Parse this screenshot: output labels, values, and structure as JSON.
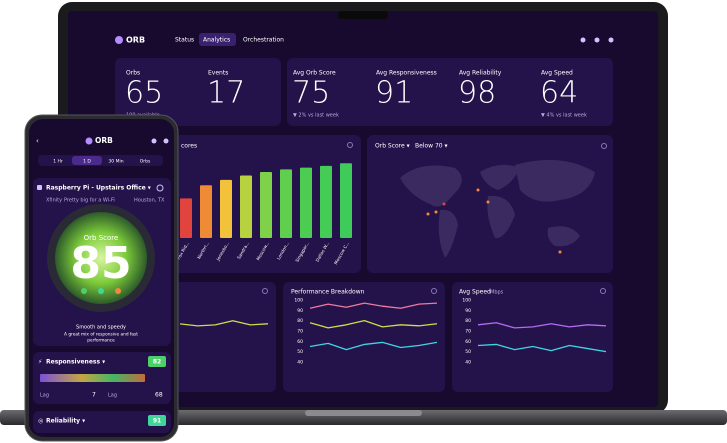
{
  "laptop": {
    "nav": {
      "logo": "ORB",
      "tabs": [
        "Status",
        "Analytics",
        "Orchestration"
      ],
      "active_tab": 1
    },
    "stats": [
      {
        "label": "Orbs",
        "value": "65",
        "note": "100 available",
        "color": "#ffffff"
      },
      {
        "label": "Events",
        "value": "17",
        "color": "#ffffff"
      },
      {
        "label": "Avg Orb Score",
        "value": "75",
        "note": "▼ 2% vs last week",
        "color": "#f2b43c"
      },
      {
        "label": "Avg Responsiveness",
        "value": "91",
        "color": "#4cd16a"
      },
      {
        "label": "Avg Reliability",
        "value": "98",
        "color": "#3fd69a"
      },
      {
        "label": "Avg Speed",
        "value": "64",
        "note": "▼ 4% vs last week",
        "color": "#f28a3c"
      }
    ],
    "score_chart": {
      "type": "bar",
      "title": "cores",
      "categories": [
        "Fox Rid...",
        "Northri...",
        "Jonesbo...",
        "Sandra...",
        "Moscow...",
        "London...",
        "Singapor...",
        "Dallas W...",
        "Moscow C..."
      ],
      "values": [
        45,
        60,
        66,
        71,
        75,
        78,
        80,
        82,
        85
      ],
      "colors": [
        "#e0443c",
        "#ef8a35",
        "#f2c23a",
        "#b8d13e",
        "#7fd14a",
        "#5fcf4d",
        "#4ccd52",
        "#45cc56",
        "#3fcb5a"
      ],
      "ylim": [
        0,
        100
      ]
    },
    "map": {
      "filter_1": "Orb Score ▾",
      "filter_2": "Below 70 ▾"
    },
    "trend_chart": {
      "type": "line",
      "ylim": [
        40,
        100
      ],
      "series": [
        {
          "color": "#c8e04a",
          "values": [
            75,
            73,
            74,
            78,
            74,
            75
          ]
        }
      ]
    },
    "performance_chart": {
      "type": "line",
      "title": "Performance Breakdown",
      "ylim": [
        40,
        100
      ],
      "yticks": [
        100,
        90,
        80,
        70,
        60,
        50,
        40
      ],
      "grid": false,
      "series": [
        {
          "color": "#f07aa0",
          "values": [
            92,
            96,
            93,
            97,
            94,
            92,
            96,
            97
          ]
        },
        {
          "color": "#c8e04a",
          "values": [
            78,
            73,
            76,
            80,
            74,
            76,
            75,
            77
          ]
        },
        {
          "color": "#3fd6e0",
          "values": [
            55,
            58,
            52,
            57,
            59,
            54,
            56,
            59
          ]
        }
      ]
    },
    "speed_chart": {
      "type": "line",
      "title": "Avg Speed",
      "unit": "Mbps",
      "ylim": [
        40,
        100
      ],
      "yticks": [
        100,
        90,
        80,
        70,
        60,
        50,
        40
      ],
      "grid": false,
      "series": [
        {
          "color": "#b46cf0",
          "values": [
            76,
            78,
            73,
            74,
            77,
            74,
            76,
            75
          ]
        },
        {
          "color": "#3fd6e0",
          "values": [
            56,
            57,
            52,
            55,
            51,
            56,
            53,
            50
          ]
        }
      ]
    }
  },
  "phone": {
    "logo": "ORB",
    "tabs": [
      "1 Hr",
      "1 D",
      "30 Min",
      "Orbs"
    ],
    "active_tab": 1,
    "device": {
      "name": "Raspberry Pi - Upstairs Office ▾",
      "isp": "Xfinity",
      "isp_note": "Pretty big for a Wi-Fi",
      "location": "Houston, TX"
    },
    "score_label": "Orb Score",
    "score": "85",
    "summary": "Smooth and speedy",
    "description": [
      "A great mix of responsive and fast",
      "performance"
    ],
    "responsiveness": {
      "label": "Responsiveness ▾",
      "value": "82",
      "metrics": [
        {
          "label": "Lag",
          "value": "7"
        },
        {
          "label": "Lag",
          "value": "68"
        }
      ]
    },
    "reliability": {
      "label": "Reliability ▾",
      "value": "91"
    }
  }
}
